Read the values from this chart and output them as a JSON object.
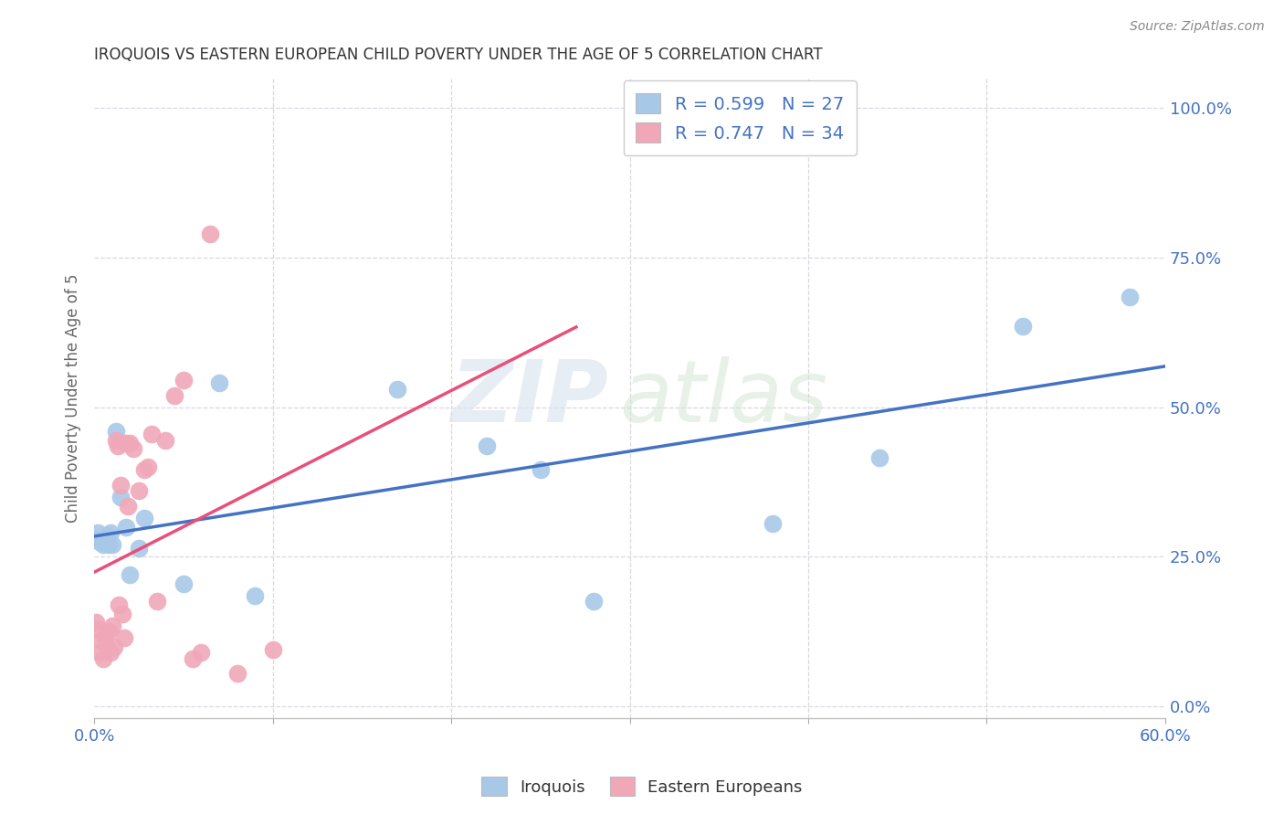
{
  "title": "IROQUOIS VS EASTERN EUROPEAN CHILD POVERTY UNDER THE AGE OF 5 CORRELATION CHART",
  "source": "Source: ZipAtlas.com",
  "ylabel": "Child Poverty Under the Age of 5",
  "xlim": [
    0.0,
    0.6
  ],
  "ylim": [
    -0.02,
    1.05
  ],
  "xtick_labels": [
    "0.0%",
    "",
    "",
    "",
    "",
    "",
    "60.0%"
  ],
  "xtick_vals": [
    0.0,
    0.1,
    0.2,
    0.3,
    0.4,
    0.5,
    0.6
  ],
  "ytick_labels": [
    "100.0%",
    "75.0%",
    "50.0%",
    "25.0%",
    "0.0%"
  ],
  "ytick_vals": [
    1.0,
    0.75,
    0.5,
    0.25,
    0.0
  ],
  "iroquois_color": "#a8c8e8",
  "eastern_color": "#f0a8b8",
  "iroquois_line_color": "#4472c4",
  "eastern_line_color": "#e8507a",
  "legend_text_color": "#4472c4",
  "iroquois_R": "0.599",
  "iroquois_N": "27",
  "eastern_R": "0.747",
  "eastern_N": "34",
  "background_color": "#ffffff",
  "grid_color": "#d8d8e0",
  "iroquois_x": [
    0.001,
    0.002,
    0.003,
    0.004,
    0.005,
    0.006,
    0.007,
    0.008,
    0.009,
    0.01,
    0.012,
    0.015,
    0.018,
    0.02,
    0.025,
    0.028,
    0.05,
    0.07,
    0.09,
    0.17,
    0.22,
    0.25,
    0.28,
    0.38,
    0.44,
    0.52,
    0.58
  ],
  "iroquois_y": [
    0.28,
    0.29,
    0.275,
    0.28,
    0.27,
    0.275,
    0.285,
    0.27,
    0.29,
    0.27,
    0.46,
    0.35,
    0.3,
    0.22,
    0.265,
    0.315,
    0.205,
    0.54,
    0.185,
    0.53,
    0.435,
    0.395,
    0.175,
    0.305,
    0.415,
    0.635,
    0.685
  ],
  "eastern_x": [
    0.001,
    0.002,
    0.003,
    0.004,
    0.005,
    0.006,
    0.007,
    0.008,
    0.009,
    0.01,
    0.011,
    0.012,
    0.013,
    0.014,
    0.015,
    0.016,
    0.017,
    0.018,
    0.019,
    0.02,
    0.022,
    0.025,
    0.028,
    0.03,
    0.032,
    0.035,
    0.04,
    0.045,
    0.05,
    0.055,
    0.06,
    0.065,
    0.08,
    0.1
  ],
  "eastern_y": [
    0.14,
    0.13,
    0.09,
    0.11,
    0.08,
    0.115,
    0.1,
    0.125,
    0.09,
    0.135,
    0.1,
    0.445,
    0.435,
    0.17,
    0.37,
    0.155,
    0.115,
    0.44,
    0.335,
    0.44,
    0.43,
    0.36,
    0.395,
    0.4,
    0.455,
    0.175,
    0.445,
    0.52,
    0.545,
    0.08,
    0.09,
    0.79,
    0.055,
    0.095
  ],
  "eastern_line_xlim": [
    0.0,
    0.27
  ]
}
